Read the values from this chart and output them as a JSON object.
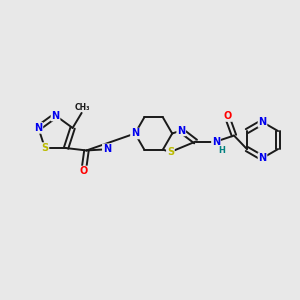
{
  "background_color": "#e8e8e8",
  "bond_color": "#1a1a1a",
  "atom_colors": {
    "N": "#0000ee",
    "S": "#bbbb00",
    "O": "#ff0000",
    "C": "#1a1a1a",
    "H": "#008080"
  },
  "figsize": [
    3.0,
    3.0
  ],
  "dpi": 100
}
